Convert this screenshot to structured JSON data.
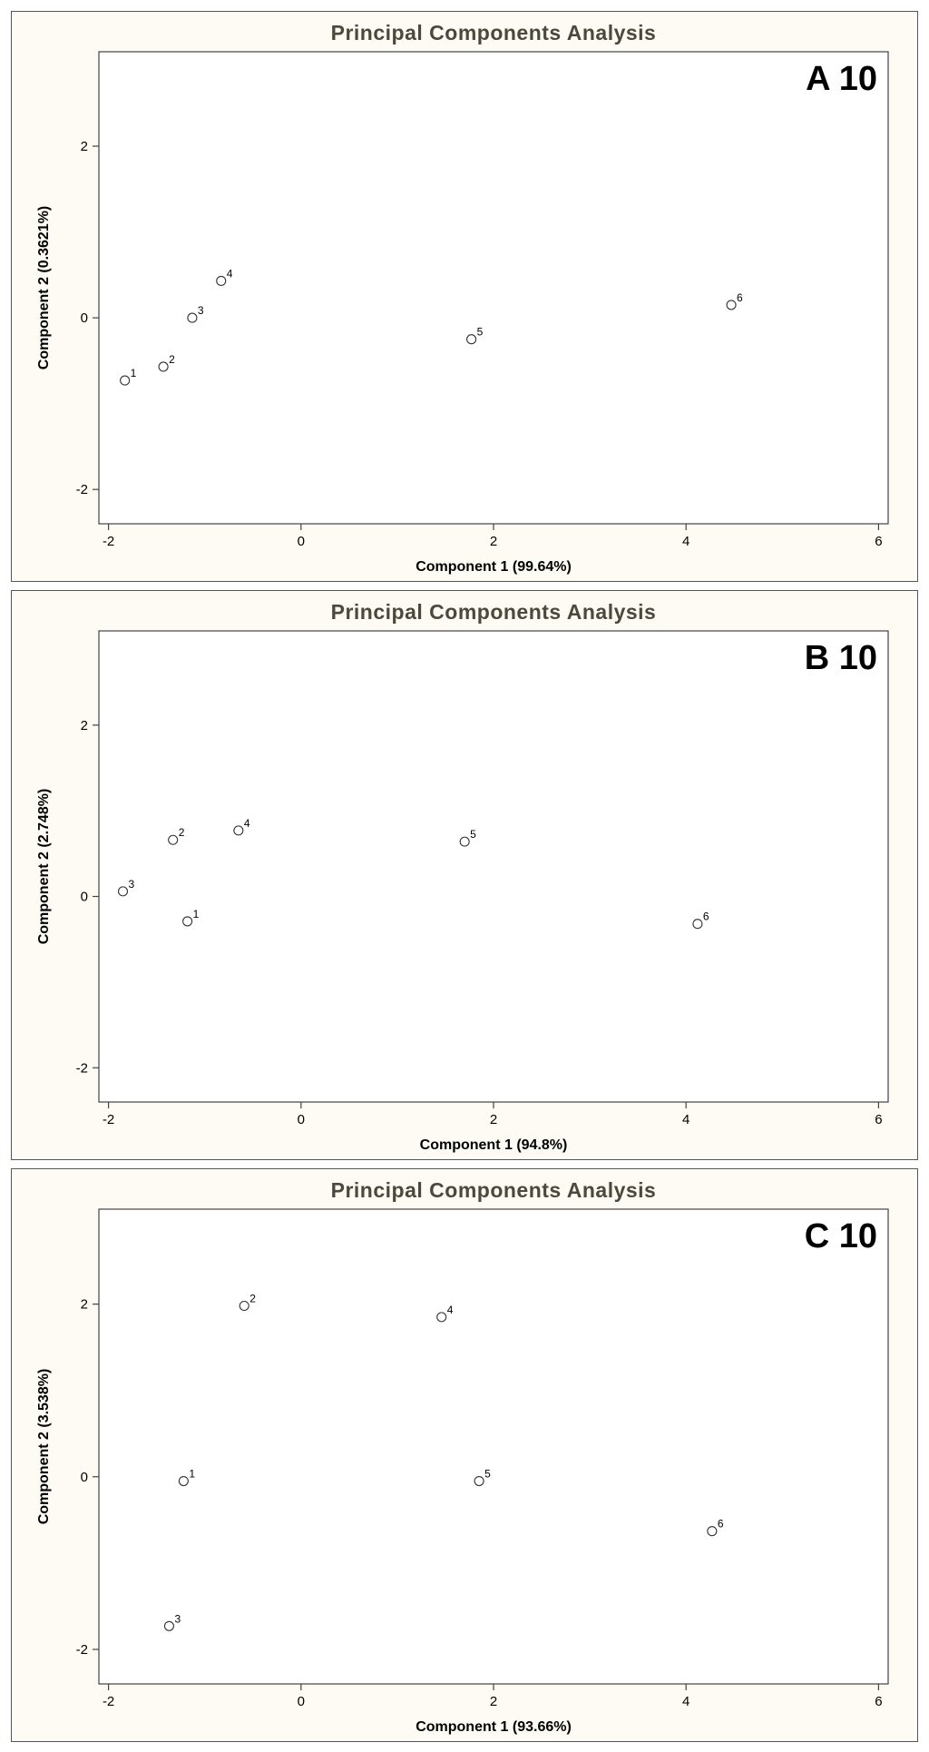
{
  "chart_data": [
    {
      "type": "scatter",
      "title": "Principal Components Analysis",
      "panel_label": "A 10",
      "xlabel": "Component 1 (99.64%)",
      "ylabel": "Component 2 (0.3621%)",
      "xlim": [
        -2.1,
        6.1
      ],
      "ylim": [
        -2.4,
        3.1
      ],
      "xticks": [
        -2,
        0,
        2,
        4,
        6
      ],
      "yticks": [
        -2,
        0,
        2
      ],
      "points": [
        {
          "label": "1",
          "x": -1.83,
          "y": -0.73
        },
        {
          "label": "2",
          "x": -1.43,
          "y": -0.57
        },
        {
          "label": "3",
          "x": -1.13,
          "y": 0.0
        },
        {
          "label": "4",
          "x": -0.83,
          "y": 0.43
        },
        {
          "label": "5",
          "x": 1.77,
          "y": -0.25
        },
        {
          "label": "6",
          "x": 4.47,
          "y": 0.15
        }
      ]
    },
    {
      "type": "scatter",
      "title": "Principal Components Analysis",
      "panel_label": "B 10",
      "xlabel": "Component 1 (94.8%)",
      "ylabel": "Component 2 (2.748%)",
      "xlim": [
        -2.1,
        6.1
      ],
      "ylim": [
        -2.4,
        3.1
      ],
      "xticks": [
        -2,
        0,
        2,
        4,
        6
      ],
      "yticks": [
        -2,
        0,
        2
      ],
      "points": [
        {
          "label": "1",
          "x": -1.18,
          "y": -0.29
        },
        {
          "label": "2",
          "x": -1.33,
          "y": 0.66
        },
        {
          "label": "3",
          "x": -1.85,
          "y": 0.06
        },
        {
          "label": "4",
          "x": -0.65,
          "y": 0.77
        },
        {
          "label": "5",
          "x": 1.7,
          "y": 0.64
        },
        {
          "label": "6",
          "x": 4.12,
          "y": -0.32
        }
      ]
    },
    {
      "type": "scatter",
      "title": "Principal Components Analysis",
      "panel_label": "C 10",
      "xlabel": "Component 1 (93.66%)",
      "ylabel": "Component 2 (3.538%)",
      "xlim": [
        -2.1,
        6.1
      ],
      "ylim": [
        -2.4,
        3.1
      ],
      "xticks": [
        -2,
        0,
        2,
        4,
        6
      ],
      "yticks": [
        -2,
        0,
        2
      ],
      "points": [
        {
          "label": "1",
          "x": -1.22,
          "y": -0.05
        },
        {
          "label": "2",
          "x": -0.59,
          "y": 1.98
        },
        {
          "label": "3",
          "x": -1.37,
          "y": -1.73
        },
        {
          "label": "4",
          "x": 1.46,
          "y": 1.85
        },
        {
          "label": "5",
          "x": 1.85,
          "y": -0.05
        },
        {
          "label": "6",
          "x": 4.27,
          "y": -0.63
        }
      ]
    }
  ]
}
